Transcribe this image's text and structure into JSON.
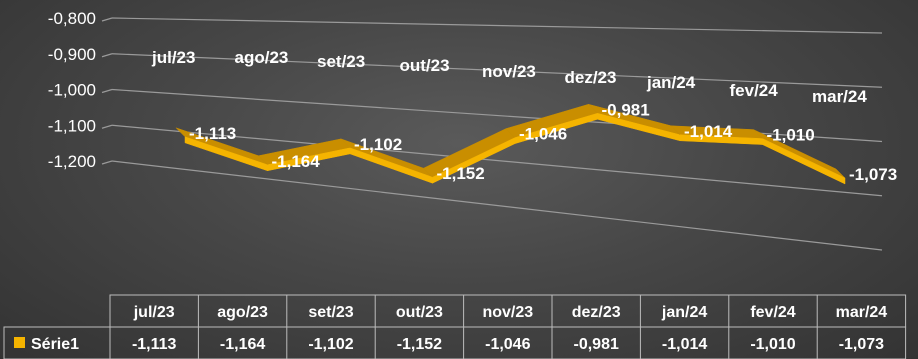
{
  "chart_data": {
    "type": "line",
    "style": "3d-ribbon",
    "categories": [
      "jul/23",
      "ago/23",
      "set/23",
      "out/23",
      "nov/23",
      "dez/23",
      "jan/24",
      "fev/24",
      "mar/24"
    ],
    "series": [
      {
        "name": "Série1",
        "values": [
          -1.113,
          -1.164,
          -1.102,
          -1.152,
          -1.046,
          -0.981,
          -1.014,
          -1.01,
          -1.073
        ]
      }
    ],
    "value_labels": [
      "-1,113",
      "-1,164",
      "-1,102",
      "-1,152",
      "-1,046",
      "-0,981",
      "-1,014",
      "-1,010",
      "-1,073"
    ],
    "y_tick_labels": [
      "-0,800",
      "-0,900",
      "-1,000",
      "-1,100",
      "-1,200"
    ],
    "y_ticks": [
      -0.8,
      -0.9,
      -1.0,
      -1.1,
      -1.2
    ],
    "ylim": [
      -1.2,
      -0.8
    ],
    "grid": true,
    "legend": "data-table",
    "data_table": true,
    "colors": {
      "series": "#f5b400",
      "series_dark": "#c98e00",
      "background": "#474747",
      "grid": "#9a9a9a",
      "text": "#ffffff"
    }
  }
}
